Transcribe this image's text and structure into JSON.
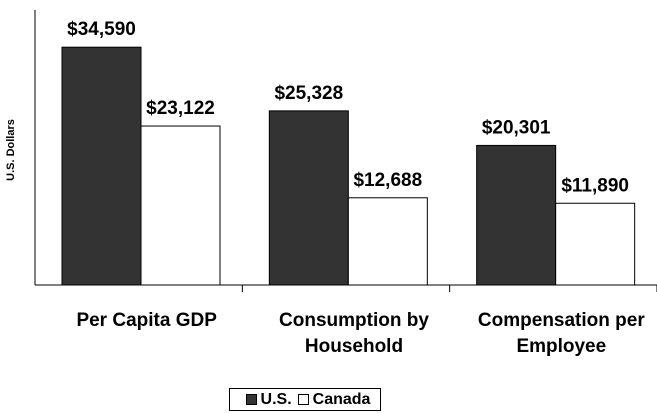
{
  "chart_data": {
    "type": "bar",
    "y_label": "U.S. Dollars",
    "categories": [
      "Per Capita GDP",
      "Consumption by Household",
      "Compensation per Employee"
    ],
    "series": [
      {
        "name": "U.S.",
        "color": "#333333",
        "values": [
          34590,
          25328,
          20301
        ],
        "value_labels": [
          "$34,590",
          "$25,328",
          "$20,301"
        ]
      },
      {
        "name": "Canada",
        "color": "#ffffff",
        "values": [
          23122,
          12688,
          11890
        ],
        "value_labels": [
          "$23,122",
          "$12,688",
          "$11,890"
        ]
      }
    ],
    "ylim": [
      0,
      40000
    ],
    "legend": "bottom"
  }
}
